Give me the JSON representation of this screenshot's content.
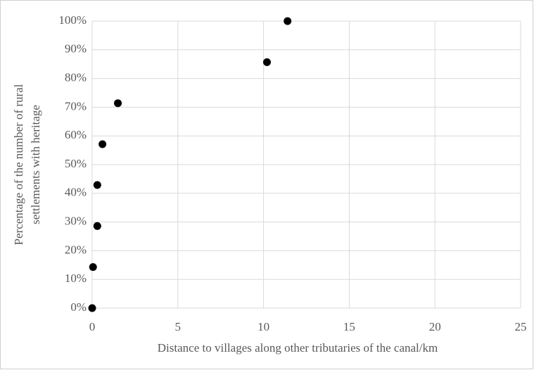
{
  "chart_data": {
    "type": "scatter",
    "x_label": "Distance to villages along other tributaries of the canal/km",
    "y_label": [
      "Percentage of the number of rural",
      "settlements with heritage"
    ],
    "x": [
      0,
      0.05,
      0.3,
      0.3,
      0.6,
      1.5,
      10.2,
      11.4
    ],
    "values": [
      0,
      14.3,
      28.6,
      42.9,
      57.1,
      71.4,
      85.7,
      100
    ],
    "color": "#000000",
    "xlim": [
      0,
      25
    ],
    "xticks": [
      0,
      5,
      10,
      15,
      20,
      25
    ],
    "ylim": [
      0,
      100
    ],
    "yticks": [
      {
        "value": 0,
        "label": "0%"
      },
      {
        "value": 10,
        "label": "10%"
      },
      {
        "value": 20,
        "label": "20%"
      },
      {
        "value": 30,
        "label": "30%"
      },
      {
        "value": 40,
        "label": "40%"
      },
      {
        "value": 50,
        "label": "50%"
      },
      {
        "value": 60,
        "label": "60%"
      },
      {
        "value": 70,
        "label": "70%"
      },
      {
        "value": 80,
        "label": "80%"
      },
      {
        "value": 90,
        "label": "90%"
      },
      {
        "value": 100,
        "label": "100%"
      }
    ],
    "grid": true
  }
}
